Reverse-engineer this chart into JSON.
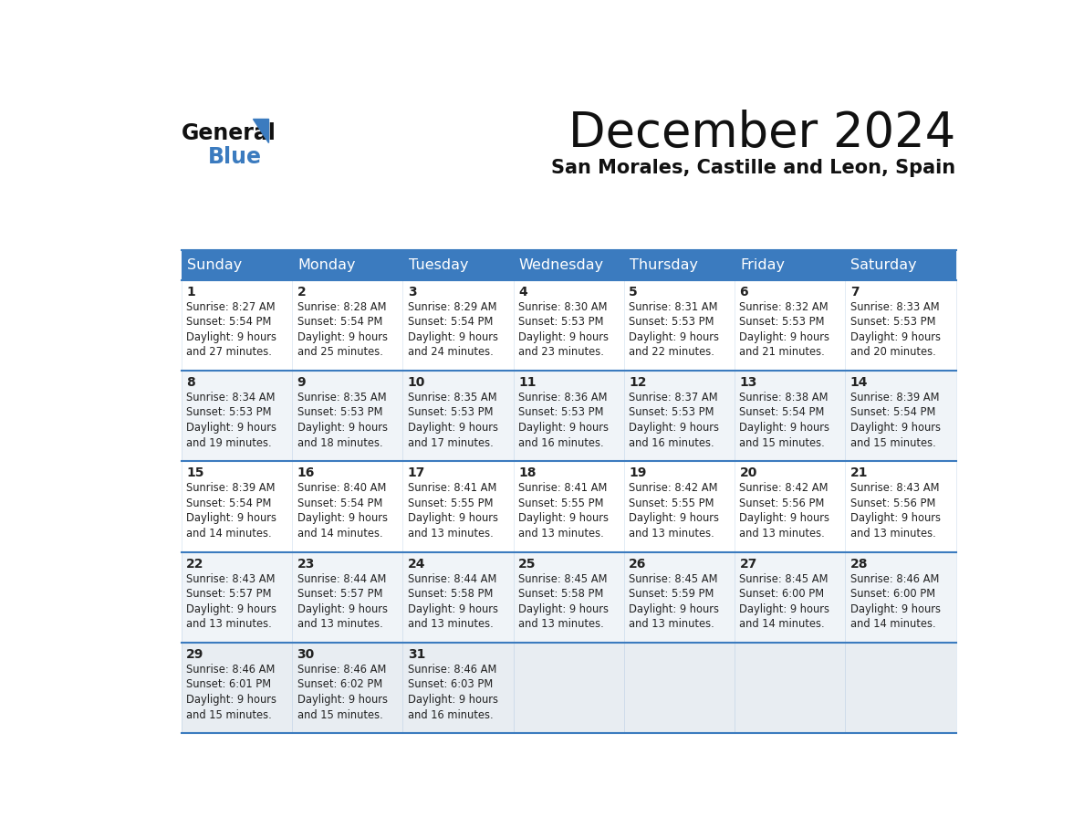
{
  "title": "December 2024",
  "subtitle": "San Morales, Castille and Leon, Spain",
  "header_color": "#3b7bbf",
  "header_text_color": "#ffffff",
  "days_of_week": [
    "Sunday",
    "Monday",
    "Tuesday",
    "Wednesday",
    "Thursday",
    "Friday",
    "Saturday"
  ],
  "row_bg_colors": [
    "#ffffff",
    "#f0f4f8",
    "#ffffff",
    "#f0f4f8",
    "#e8edf2"
  ],
  "border_color": "#3b7bbf",
  "text_color": "#222222",
  "calendar_data": [
    [
      {
        "day": 1,
        "sunrise": "8:27 AM",
        "sunset": "5:54 PM",
        "daylight": "9 hours and 27 minutes."
      },
      {
        "day": 2,
        "sunrise": "8:28 AM",
        "sunset": "5:54 PM",
        "daylight": "9 hours and 25 minutes."
      },
      {
        "day": 3,
        "sunrise": "8:29 AM",
        "sunset": "5:54 PM",
        "daylight": "9 hours and 24 minutes."
      },
      {
        "day": 4,
        "sunrise": "8:30 AM",
        "sunset": "5:53 PM",
        "daylight": "9 hours and 23 minutes."
      },
      {
        "day": 5,
        "sunrise": "8:31 AM",
        "sunset": "5:53 PM",
        "daylight": "9 hours and 22 minutes."
      },
      {
        "day": 6,
        "sunrise": "8:32 AM",
        "sunset": "5:53 PM",
        "daylight": "9 hours and 21 minutes."
      },
      {
        "day": 7,
        "sunrise": "8:33 AM",
        "sunset": "5:53 PM",
        "daylight": "9 hours and 20 minutes."
      }
    ],
    [
      {
        "day": 8,
        "sunrise": "8:34 AM",
        "sunset": "5:53 PM",
        "daylight": "9 hours and 19 minutes."
      },
      {
        "day": 9,
        "sunrise": "8:35 AM",
        "sunset": "5:53 PM",
        "daylight": "9 hours and 18 minutes."
      },
      {
        "day": 10,
        "sunrise": "8:35 AM",
        "sunset": "5:53 PM",
        "daylight": "9 hours and 17 minutes."
      },
      {
        "day": 11,
        "sunrise": "8:36 AM",
        "sunset": "5:53 PM",
        "daylight": "9 hours and 16 minutes."
      },
      {
        "day": 12,
        "sunrise": "8:37 AM",
        "sunset": "5:53 PM",
        "daylight": "9 hours and 16 minutes."
      },
      {
        "day": 13,
        "sunrise": "8:38 AM",
        "sunset": "5:54 PM",
        "daylight": "9 hours and 15 minutes."
      },
      {
        "day": 14,
        "sunrise": "8:39 AM",
        "sunset": "5:54 PM",
        "daylight": "9 hours and 15 minutes."
      }
    ],
    [
      {
        "day": 15,
        "sunrise": "8:39 AM",
        "sunset": "5:54 PM",
        "daylight": "9 hours and 14 minutes."
      },
      {
        "day": 16,
        "sunrise": "8:40 AM",
        "sunset": "5:54 PM",
        "daylight": "9 hours and 14 minutes."
      },
      {
        "day": 17,
        "sunrise": "8:41 AM",
        "sunset": "5:55 PM",
        "daylight": "9 hours and 13 minutes."
      },
      {
        "day": 18,
        "sunrise": "8:41 AM",
        "sunset": "5:55 PM",
        "daylight": "9 hours and 13 minutes."
      },
      {
        "day": 19,
        "sunrise": "8:42 AM",
        "sunset": "5:55 PM",
        "daylight": "9 hours and 13 minutes."
      },
      {
        "day": 20,
        "sunrise": "8:42 AM",
        "sunset": "5:56 PM",
        "daylight": "9 hours and 13 minutes."
      },
      {
        "day": 21,
        "sunrise": "8:43 AM",
        "sunset": "5:56 PM",
        "daylight": "9 hours and 13 minutes."
      }
    ],
    [
      {
        "day": 22,
        "sunrise": "8:43 AM",
        "sunset": "5:57 PM",
        "daylight": "9 hours and 13 minutes."
      },
      {
        "day": 23,
        "sunrise": "8:44 AM",
        "sunset": "5:57 PM",
        "daylight": "9 hours and 13 minutes."
      },
      {
        "day": 24,
        "sunrise": "8:44 AM",
        "sunset": "5:58 PM",
        "daylight": "9 hours and 13 minutes."
      },
      {
        "day": 25,
        "sunrise": "8:45 AM",
        "sunset": "5:58 PM",
        "daylight": "9 hours and 13 minutes."
      },
      {
        "day": 26,
        "sunrise": "8:45 AM",
        "sunset": "5:59 PM",
        "daylight": "9 hours and 13 minutes."
      },
      {
        "day": 27,
        "sunrise": "8:45 AM",
        "sunset": "6:00 PM",
        "daylight": "9 hours and 14 minutes."
      },
      {
        "day": 28,
        "sunrise": "8:46 AM",
        "sunset": "6:00 PM",
        "daylight": "9 hours and 14 minutes."
      }
    ],
    [
      {
        "day": 29,
        "sunrise": "8:46 AM",
        "sunset": "6:01 PM",
        "daylight": "9 hours and 15 minutes."
      },
      {
        "day": 30,
        "sunrise": "8:46 AM",
        "sunset": "6:02 PM",
        "daylight": "9 hours and 15 minutes."
      },
      {
        "day": 31,
        "sunrise": "8:46 AM",
        "sunset": "6:03 PM",
        "daylight": "9 hours and 16 minutes."
      },
      null,
      null,
      null,
      null
    ]
  ]
}
